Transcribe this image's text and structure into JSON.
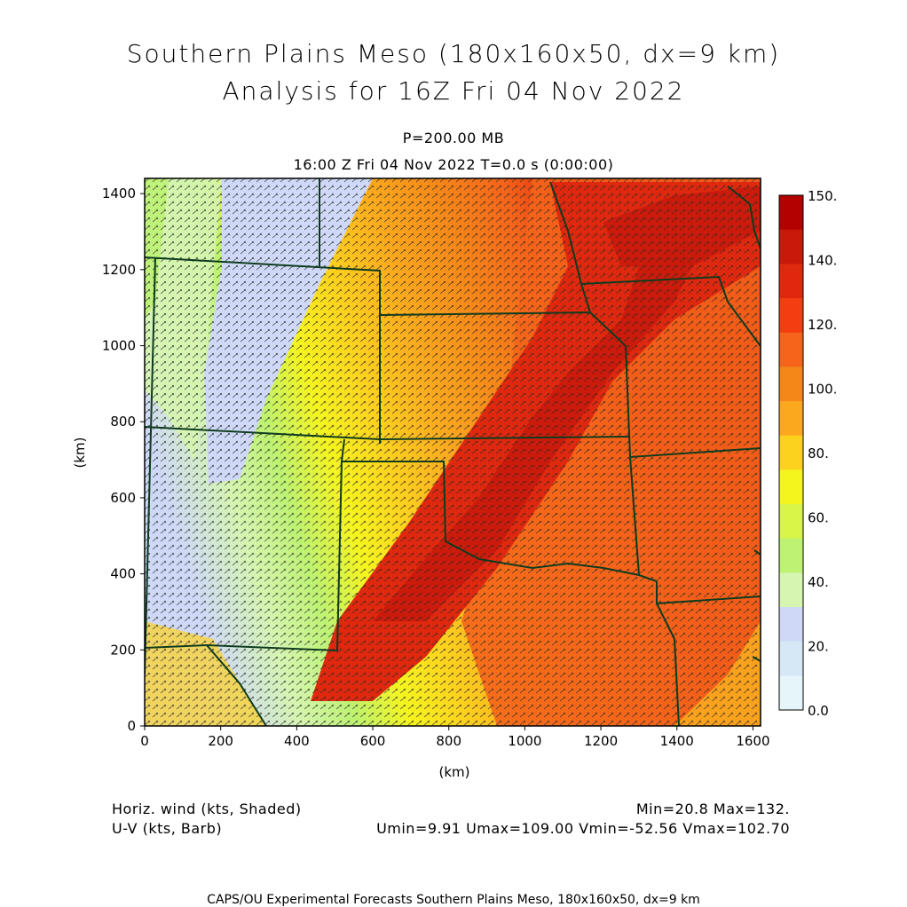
{
  "title_line1": "Southern Plains Meso (180x160x50, dx=9 km)",
  "title_line2": "Analysis for 16Z Fri 04 Nov 2022",
  "level_label": "P=200.00 MB",
  "time_label": "16:00 Z Fri 04 Nov 2022    T=0.0 s (0:00:00)",
  "x_axis": {
    "label": "(km)",
    "ticks": [
      "0",
      "200",
      "400",
      "600",
      "800",
      "1000",
      "1200",
      "1400",
      "1600"
    ]
  },
  "y_axis": {
    "label": "(km)",
    "ticks": [
      "0",
      "200",
      "400",
      "600",
      "800",
      "1000",
      "1200",
      "1400"
    ]
  },
  "colorbar": {
    "labels": [
      "150.",
      "140.",
      "120.",
      "100.",
      "80.",
      "60.",
      "40.",
      "20.",
      "0.0"
    ],
    "colors_top_to_bottom": [
      "#b30000",
      "#c8190a",
      "#e0280e",
      "#f53d12",
      "#f5641a",
      "#f58718",
      "#fba81e",
      "#fdd21e",
      "#f5f51e",
      "#d8f548",
      "#bdf272",
      "#d5f5b0",
      "#cfd9f7",
      "#d6e8f5",
      "#e6f5fa"
    ]
  },
  "legend_left": [
    "Horiz. wind (kts, Shaded)",
    "U-V (kts, Barb)"
  ],
  "legend_right": [
    "Min=20.8 Max=132.",
    "Umin=9.91  Umax=109.00  Vmin=-52.56  Vmax=102.70"
  ],
  "footer": "CAPS/OU Experimental Forecasts  Southern Plains Meso, 180x160x50, dx=9 km"
}
